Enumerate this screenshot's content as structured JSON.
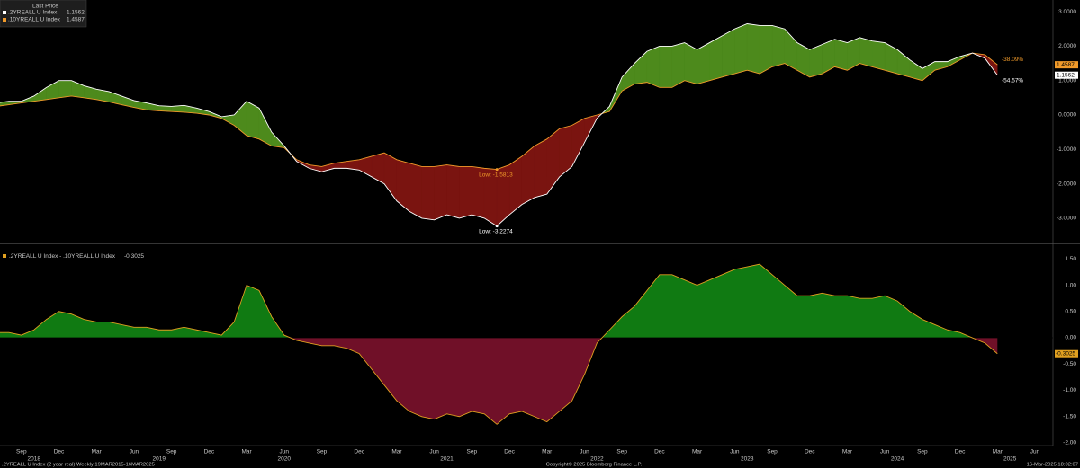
{
  "chart_data": [
    {
      "type": "line-fill",
      "legend_title": "Last Price",
      "x": [
        "2018-07",
        "2018-08",
        "2018-09",
        "2018-10",
        "2018-11",
        "2018-12",
        "2019-01",
        "2019-02",
        "2019-03",
        "2019-04",
        "2019-05",
        "2019-06",
        "2019-07",
        "2019-08",
        "2019-09",
        "2019-10",
        "2019-11",
        "2019-12",
        "2020-01",
        "2020-02",
        "2020-03",
        "2020-04",
        "2020-05",
        "2020-06",
        "2020-07",
        "2020-08",
        "2020-09",
        "2020-10",
        "2020-11",
        "2020-12",
        "2021-01",
        "2021-02",
        "2021-03",
        "2021-04",
        "2021-05",
        "2021-06",
        "2021-07",
        "2021-08",
        "2021-09",
        "2021-10",
        "2021-11",
        "2021-12",
        "2022-01",
        "2022-02",
        "2022-03",
        "2022-04",
        "2022-05",
        "2022-06",
        "2022-07",
        "2022-08",
        "2022-09",
        "2022-10",
        "2022-11",
        "2022-12",
        "2023-01",
        "2023-02",
        "2023-03",
        "2023-04",
        "2023-05",
        "2023-06",
        "2023-07",
        "2023-08",
        "2023-09",
        "2023-10",
        "2023-11",
        "2023-12",
        "2024-01",
        "2024-02",
        "2024-03",
        "2024-04",
        "2024-05",
        "2024-06",
        "2024-07",
        "2024-08",
        "2024-09",
        "2024-10",
        "2024-11",
        "2024-12",
        "2025-01",
        "2025-02",
        "2025-03"
      ],
      "xlim": [
        "2018-07",
        "2025-06"
      ],
      "ylim": [
        -3.6,
        3.3
      ],
      "yticks": [
        {
          "value": 3,
          "label": "3.0000"
        },
        {
          "value": 2,
          "label": "2.0000"
        },
        {
          "value": 1,
          "label": "1.0000"
        },
        {
          "value": 0,
          "label": "0.0000"
        },
        {
          "value": -1,
          "label": "-1.0000"
        },
        {
          "value": -2,
          "label": "-2.0000"
        },
        {
          "value": -3,
          "label": "-3.0000"
        }
      ],
      "grid": true,
      "fill_colors": {
        "above": "#4d8a1c",
        "below": "#7a1410"
      },
      "series": [
        {
          "name": ".2YREALL U Index",
          "color": "#ffffff",
          "change_label": "-54.57%",
          "low_label": "Low: -3.2274",
          "values": [
            0.35,
            0.4,
            0.4,
            0.55,
            0.8,
            1.0,
            1.0,
            0.85,
            0.75,
            0.68,
            0.55,
            0.42,
            0.35,
            0.27,
            0.25,
            0.28,
            0.2,
            0.1,
            -0.05,
            0.0,
            0.4,
            0.2,
            -0.5,
            -0.9,
            -1.35,
            -1.55,
            -1.65,
            -1.55,
            -1.55,
            -1.6,
            -1.8,
            -2.0,
            -2.5,
            -2.8,
            -3.0,
            -3.05,
            -2.9,
            -3.0,
            -2.9,
            -3.0,
            -3.2274,
            -2.9,
            -2.6,
            -2.4,
            -2.3,
            -1.8,
            -1.5,
            -0.8,
            -0.1,
            0.25,
            1.1,
            1.5,
            1.85,
            2.0,
            2.0,
            2.1,
            1.9,
            2.1,
            2.3,
            2.5,
            2.65,
            2.6,
            2.6,
            2.5,
            2.1,
            1.9,
            2.05,
            2.2,
            2.1,
            2.25,
            2.15,
            2.1,
            1.9,
            1.6,
            1.35,
            1.55,
            1.55,
            1.7,
            1.8,
            1.65,
            1.1562
          ]
        },
        {
          "name": ".10YREALL U Index",
          "color": "#f09a2a",
          "change_label": "-38.09%",
          "low_label": "Low: -1.5813",
          "values": [
            0.25,
            0.3,
            0.35,
            0.4,
            0.45,
            0.5,
            0.55,
            0.5,
            0.45,
            0.38,
            0.3,
            0.22,
            0.15,
            0.12,
            0.1,
            0.08,
            0.05,
            0.0,
            -0.1,
            -0.3,
            -0.6,
            -0.7,
            -0.9,
            -0.95,
            -1.3,
            -1.45,
            -1.5,
            -1.4,
            -1.35,
            -1.3,
            -1.2,
            -1.1,
            -1.3,
            -1.4,
            -1.5,
            -1.5,
            -1.45,
            -1.5,
            -1.5,
            -1.55,
            -1.5813,
            -1.45,
            -1.2,
            -0.9,
            -0.7,
            -0.4,
            -0.3,
            -0.1,
            0.0,
            0.1,
            0.7,
            0.9,
            0.95,
            0.8,
            0.8,
            1.0,
            0.9,
            1.0,
            1.1,
            1.2,
            1.3,
            1.2,
            1.4,
            1.5,
            1.3,
            1.1,
            1.2,
            1.4,
            1.3,
            1.5,
            1.4,
            1.3,
            1.2,
            1.1,
            1.0,
            1.3,
            1.4,
            1.6,
            1.8,
            1.75,
            1.4587
          ]
        }
      ]
    },
    {
      "type": "area",
      "x": [
        "2018-07",
        "2018-08",
        "2018-09",
        "2018-10",
        "2018-11",
        "2018-12",
        "2019-01",
        "2019-02",
        "2019-03",
        "2019-04",
        "2019-05",
        "2019-06",
        "2019-07",
        "2019-08",
        "2019-09",
        "2019-10",
        "2019-11",
        "2019-12",
        "2020-01",
        "2020-02",
        "2020-03",
        "2020-04",
        "2020-05",
        "2020-06",
        "2020-07",
        "2020-08",
        "2020-09",
        "2020-10",
        "2020-11",
        "2020-12",
        "2021-01",
        "2021-02",
        "2021-03",
        "2021-04",
        "2021-05",
        "2021-06",
        "2021-07",
        "2021-08",
        "2021-09",
        "2021-10",
        "2021-11",
        "2021-12",
        "2022-01",
        "2022-02",
        "2022-03",
        "2022-04",
        "2022-05",
        "2022-06",
        "2022-07",
        "2022-08",
        "2022-09",
        "2022-10",
        "2022-11",
        "2022-12",
        "2023-01",
        "2023-02",
        "2023-03",
        "2023-04",
        "2023-05",
        "2023-06",
        "2023-07",
        "2023-08",
        "2023-09",
        "2023-10",
        "2023-11",
        "2023-12",
        "2024-01",
        "2024-02",
        "2024-03",
        "2024-04",
        "2024-05",
        "2024-06",
        "2024-07",
        "2024-08",
        "2024-09",
        "2024-10",
        "2024-11",
        "2024-12",
        "2025-01",
        "2025-02",
        "2025-03"
      ],
      "xlim": [
        "2018-07",
        "2025-06"
      ],
      "ylim": [
        -2.0,
        1.7
      ],
      "yticks": [
        {
          "value": 1.5,
          "label": "1.50"
        },
        {
          "value": 1,
          "label": "1.00"
        },
        {
          "value": 0.5,
          "label": "0.50"
        },
        {
          "value": 0,
          "label": "0.00"
        },
        {
          "value": -0.5,
          "label": "-0.50"
        },
        {
          "value": -1,
          "label": "-1.00"
        },
        {
          "value": -1.5,
          "label": "-1.50"
        },
        {
          "value": -2,
          "label": "-2.00"
        }
      ],
      "xticks": [
        {
          "value": "2018-09",
          "label": "Sep"
        },
        {
          "value": "2018-12",
          "label": "Dec"
        },
        {
          "value": "2019-03",
          "label": "Mar"
        },
        {
          "value": "2019-06",
          "label": "Jun"
        },
        {
          "value": "2019-09",
          "label": "Sep"
        },
        {
          "value": "2019-12",
          "label": "Dec"
        },
        {
          "value": "2020-03",
          "label": "Mar"
        },
        {
          "value": "2020-06",
          "label": "Jun"
        },
        {
          "value": "2020-09",
          "label": "Sep"
        },
        {
          "value": "2020-12",
          "label": "Dec"
        },
        {
          "value": "2021-03",
          "label": "Mar"
        },
        {
          "value": "2021-06",
          "label": "Jun"
        },
        {
          "value": "2021-09",
          "label": "Sep"
        },
        {
          "value": "2021-12",
          "label": "Dec"
        },
        {
          "value": "2022-03",
          "label": "Mar"
        },
        {
          "value": "2022-06",
          "label": "Jun"
        },
        {
          "value": "2022-09",
          "label": "Sep"
        },
        {
          "value": "2022-12",
          "label": "Dec"
        },
        {
          "value": "2023-03",
          "label": "Mar"
        },
        {
          "value": "2023-06",
          "label": "Jun"
        },
        {
          "value": "2023-09",
          "label": "Sep"
        },
        {
          "value": "2023-12",
          "label": "Dec"
        },
        {
          "value": "2024-03",
          "label": "Mar"
        },
        {
          "value": "2024-06",
          "label": "Jun"
        },
        {
          "value": "2024-09",
          "label": "Sep"
        },
        {
          "value": "2024-12",
          "label": "Dec"
        },
        {
          "value": "2025-03",
          "label": "Mar"
        },
        {
          "value": "2025-06",
          "label": "Jun"
        }
      ],
      "year_ticks": [
        {
          "value": "2018-10",
          "label": "2018"
        },
        {
          "value": "2019-08",
          "label": "2019"
        },
        {
          "value": "2020-06",
          "label": "2020"
        },
        {
          "value": "2021-07",
          "label": "2021"
        },
        {
          "value": "2022-07",
          "label": "2022"
        },
        {
          "value": "2023-07",
          "label": "2023"
        },
        {
          "value": "2024-07",
          "label": "2024"
        },
        {
          "value": "2025-04",
          "label": "2025"
        }
      ],
      "grid": true,
      "fill_colors": {
        "above": "#107a12",
        "below": "#701028"
      },
      "series": [
        {
          "name": ".2YREALL U Index - .10YREALL U Index",
          "color": "#e0a020",
          "values": [
            0.1,
            0.1,
            0.05,
            0.15,
            0.35,
            0.5,
            0.45,
            0.35,
            0.3,
            0.3,
            0.25,
            0.2,
            0.2,
            0.15,
            0.15,
            0.2,
            0.15,
            0.1,
            0.05,
            0.3,
            1.0,
            0.9,
            0.4,
            0.05,
            -0.05,
            -0.1,
            -0.15,
            -0.15,
            -0.2,
            -0.3,
            -0.6,
            -0.9,
            -1.2,
            -1.4,
            -1.5,
            -1.55,
            -1.45,
            -1.5,
            -1.4,
            -1.45,
            -1.6461,
            -1.45,
            -1.4,
            -1.5,
            -1.6,
            -1.4,
            -1.2,
            -0.7,
            -0.1,
            0.15,
            0.4,
            0.6,
            0.9,
            1.2,
            1.2,
            1.1,
            1.0,
            1.1,
            1.2,
            1.3,
            1.35,
            1.4,
            1.2,
            1.0,
            0.8,
            0.8,
            0.85,
            0.8,
            0.8,
            0.75,
            0.75,
            0.8,
            0.7,
            0.5,
            0.35,
            0.25,
            0.15,
            0.1,
            0.0,
            -0.1,
            -0.3025
          ]
        }
      ]
    }
  ],
  "footer": {
    "left": ".2YREALL U Index (2 year real)  Weekly 19MAR2015-16MAR2025",
    "center": "Copyright© 2025 Bloomberg Finance L.P.",
    "right": "16-Mar-2025 18:02:07"
  }
}
